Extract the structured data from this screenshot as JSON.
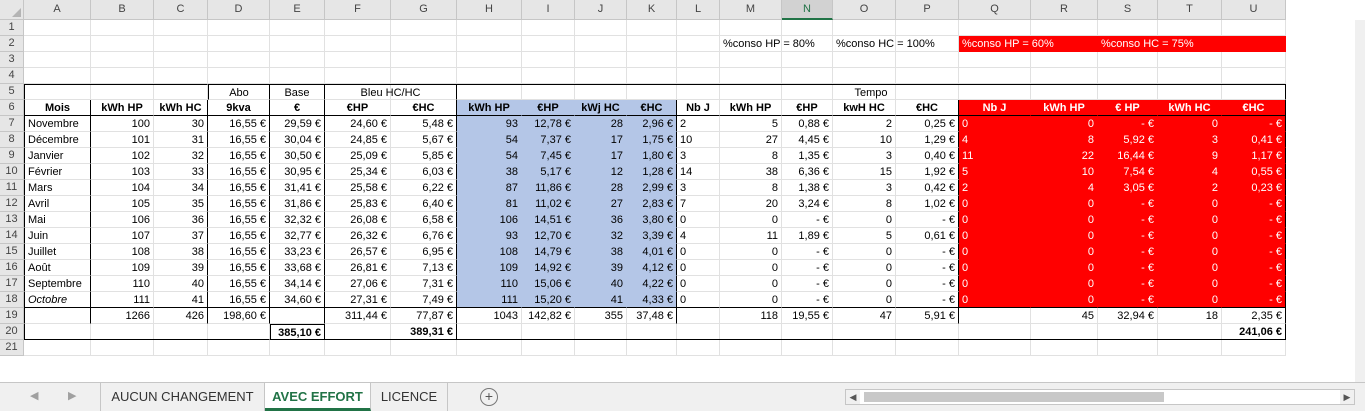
{
  "sheet": {
    "columns": [
      "A",
      "B",
      "C",
      "D",
      "E",
      "F",
      "G",
      "H",
      "I",
      "J",
      "K",
      "L",
      "M",
      "N",
      "O",
      "P",
      "Q",
      "R",
      "S",
      "T",
      "U"
    ],
    "selected_column": "N",
    "rows": [
      "1",
      "2",
      "3",
      "4",
      "5",
      "6",
      "7",
      "8",
      "9",
      "10",
      "11",
      "12",
      "13",
      "14",
      "15",
      "16",
      "17",
      "18",
      "19",
      "20",
      "21"
    ],
    "notes": {
      "conso_hp_80": "%conso HP = 80%",
      "conso_hc_100": "%conso HC = 100%",
      "conso_hp_60": "%conso HP =    60%",
      "conso_hc_75": "%conso HC = 75%"
    },
    "groups": {
      "abo": "Abo",
      "base": "Base",
      "bleu": "Bleu HC/HC",
      "tempo": "Tempo"
    },
    "headers": {
      "mois": "Mois",
      "kwh_hp": "kWh HP",
      "kwh_hc": "kWh HC",
      "abo_9kva": "9kva",
      "base_eur": "€",
      "bleu_ehp": "€HP",
      "bleu_ehc": "€HC",
      "t1_kwh_hp": "kWh HP",
      "t1_ehp": "€HP",
      "t1_kwj_hc": "kWj HC",
      "t1_ehc": "€HC",
      "t2_nbj": "Nb J",
      "t2_kwh_hp": "kWh HP",
      "t2_ehp": "€HP",
      "t2_kwh_hc": "kwH HC",
      "t2_ehc": "€HC",
      "r_nbj": "Nb J",
      "r_kwh_hp": "kWh HP",
      "r_ehp": "€ HP",
      "r_kwh_hc": "kWh HC",
      "r_ehc": "€HC"
    },
    "data": [
      [
        "Novembre",
        "100",
        "30",
        "16,55 €",
        "29,59 €",
        "24,60 €",
        "5,48 €",
        "93",
        "12,78 €",
        "28",
        "2,96 €",
        "2",
        "5",
        "0,88 €",
        "2",
        "0,25 €",
        "0",
        "0",
        "-    €",
        "0",
        "-    €"
      ],
      [
        "Décembre",
        "101",
        "31",
        "16,55 €",
        "30,04 €",
        "24,85 €",
        "5,67 €",
        "54",
        "7,37 €",
        "17",
        "1,75 €",
        "10",
        "27",
        "4,45 €",
        "10",
        "1,29 €",
        "4",
        "8",
        "5,92 €",
        "3",
        "0,41 €"
      ],
      [
        "Janvier",
        "102",
        "32",
        "16,55 €",
        "30,50 €",
        "25,09 €",
        "5,85 €",
        "54",
        "7,45 €",
        "17",
        "1,80 €",
        "3",
        "8",
        "1,35 €",
        "3",
        "0,40 €",
        "11",
        "22",
        "16,44 €",
        "9",
        "1,17 €"
      ],
      [
        "Février",
        "103",
        "33",
        "16,55 €",
        "30,95 €",
        "25,34 €",
        "6,03 €",
        "38",
        "5,17 €",
        "12",
        "1,28 €",
        "14",
        "38",
        "6,36 €",
        "15",
        "1,92 €",
        "5",
        "10",
        "7,54 €",
        "4",
        "0,55 €"
      ],
      [
        "Mars",
        "104",
        "34",
        "16,55 €",
        "31,41 €",
        "25,58 €",
        "6,22 €",
        "87",
        "11,86 €",
        "28",
        "2,99 €",
        "3",
        "8",
        "1,38 €",
        "3",
        "0,42 €",
        "2",
        "4",
        "3,05 €",
        "2",
        "0,23 €"
      ],
      [
        "Avril",
        "105",
        "35",
        "16,55 €",
        "31,86 €",
        "25,83 €",
        "6,40 €",
        "81",
        "11,02 €",
        "27",
        "2,83 €",
        "7",
        "20",
        "3,24 €",
        "8",
        "1,02 €",
        "0",
        "0",
        "-    €",
        "0",
        "-    €"
      ],
      [
        "Mai",
        "106",
        "36",
        "16,55 €",
        "32,32 €",
        "26,08 €",
        "6,58 €",
        "106",
        "14,51 €",
        "36",
        "3,80 €",
        "0",
        "0",
        "-    €",
        "0",
        "-    €",
        "0",
        "0",
        "-    €",
        "0",
        "-    €"
      ],
      [
        "Juin",
        "107",
        "37",
        "16,55 €",
        "32,77 €",
        "26,32 €",
        "6,76 €",
        "93",
        "12,70 €",
        "32",
        "3,39 €",
        "4",
        "11",
        "1,89 €",
        "5",
        "0,61 €",
        "0",
        "0",
        "-    €",
        "0",
        "-    €"
      ],
      [
        "Juillet",
        "108",
        "38",
        "16,55 €",
        "33,23 €",
        "26,57 €",
        "6,95 €",
        "108",
        "14,79 €",
        "38",
        "4,01 €",
        "0",
        "0",
        "-    €",
        "0",
        "-    €",
        "0",
        "0",
        "-    €",
        "0",
        "-    €"
      ],
      [
        "Août",
        "109",
        "39",
        "16,55 €",
        "33,68 €",
        "26,81 €",
        "7,13 €",
        "109",
        "14,92 €",
        "39",
        "4,12 €",
        "0",
        "0",
        "-    €",
        "0",
        "-    €",
        "0",
        "0",
        "-    €",
        "0",
        "-    €"
      ],
      [
        "Septembre",
        "110",
        "40",
        "16,55 €",
        "34,14 €",
        "27,06 €",
        "7,31 €",
        "110",
        "15,06 €",
        "40",
        "4,22 €",
        "0",
        "0",
        "-    €",
        "0",
        "-    €",
        "0",
        "0",
        "-    €",
        "0",
        "-    €"
      ],
      [
        "Octobre",
        "111",
        "41",
        "16,55 €",
        "34,60 €",
        "27,31 €",
        "7,49 €",
        "111",
        "15,20 €",
        "41",
        "4,33 €",
        "0",
        "0",
        "-    €",
        "0",
        "-    €",
        "0",
        "0",
        "-    €",
        "0",
        "-    €"
      ]
    ],
    "totals": {
      "kwh_hp": "1266",
      "kwh_hc": "426",
      "abo": "198,60 €",
      "bleu_ehp": "311,44 €",
      "bleu_ehc": "77,87 €",
      "t1_kwh_hp": "1043",
      "t1_ehp": "142,82 €",
      "t1_kwj_hc": "355",
      "t1_ehc": "37,48 €",
      "t2_kwh_hp": "118",
      "t2_ehp": "19,55 €",
      "t2_kwh_hc": "47",
      "t2_ehc": "5,91 €",
      "r_kwh_hp": "45",
      "r_ehp": "32,94 €",
      "r_kwh_hc": "18",
      "r_ehc": "2,35 €"
    },
    "grand_totals": {
      "base": "385,10 €",
      "bleu": "389,31 €",
      "tempo": "241,06 €"
    }
  },
  "tabs": {
    "items": [
      "AUCUN CHANGEMENT",
      "AVEC EFFORT",
      "LICENCE"
    ],
    "active": "AVEC EFFORT",
    "add_symbol": "+",
    "nav_prev": "◀",
    "nav_next": "▶"
  },
  "colors": {
    "blue_fill": "#b4c6e7",
    "red_fill": "#ff0000",
    "excel_green": "#217346"
  },
  "icons": {
    "add_sheet": "plus-circle-icon",
    "scroll_left": "arrow-left-icon",
    "scroll_right": "arrow-right-icon"
  }
}
